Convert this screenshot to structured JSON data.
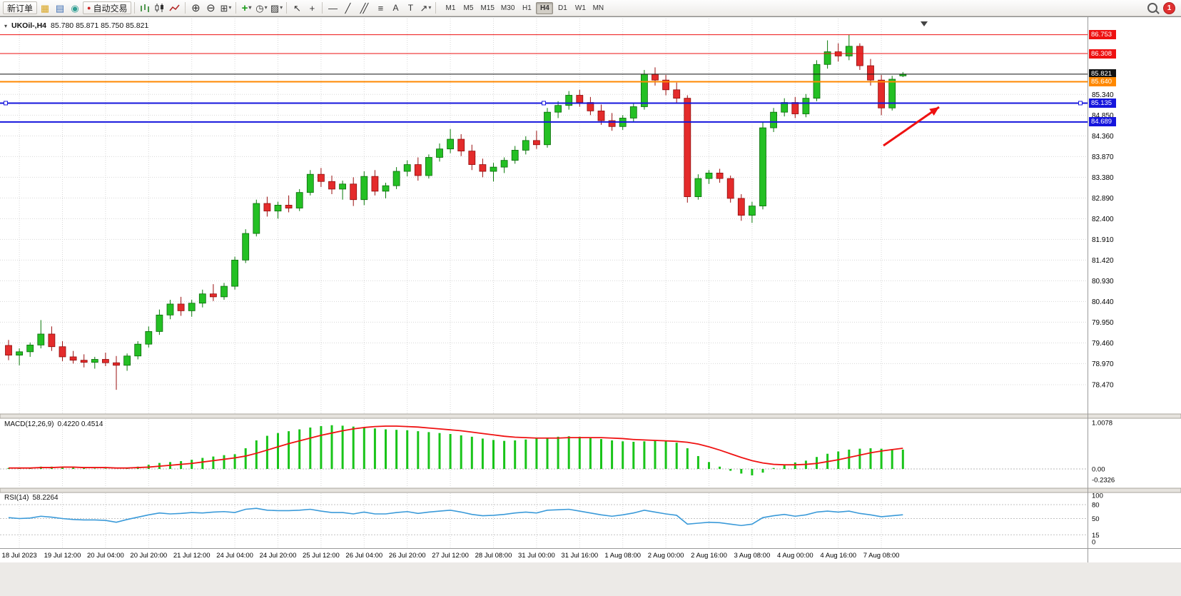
{
  "toolbar": {
    "new_order_label": "新订单",
    "autotrading_label": "自动交易",
    "timeframes": [
      "M1",
      "M5",
      "M15",
      "M30",
      "H1",
      "H4",
      "D1",
      "W1",
      "MN"
    ],
    "active_timeframe": "H4",
    "notification_count": "1"
  },
  "icons": {
    "market_watch": "▦",
    "data_window": "▤",
    "navigator": "◉",
    "autotrading_dot": "●",
    "zoom_in": "⊕",
    "zoom_out": "⊖",
    "tile_windows": "⊞",
    "indicators_add": "+",
    "periods_clock": "◷",
    "template": "▨",
    "cursor": "↖",
    "crosshair": "+",
    "horizontal_line": "—",
    "trendline": "╱",
    "channel": "╱╱",
    "fibonacci": "≡",
    "text_tool": "A",
    "label_tool": "T",
    "shapes": "↗",
    "dropdown": "▾",
    "header_marker": "▾"
  },
  "chart": {
    "symbol_period": "UKOil-,H4",
    "ohlc": "85.780 85.871 85.750 85.821"
  },
  "chart_data": [
    {
      "type": "candlestick",
      "symbol": "UKOil-",
      "timeframe": "H4",
      "open": 85.78,
      "high": 85.871,
      "low": 85.75,
      "close": 85.821,
      "y_ticks": [
        85.34,
        84.85,
        84.36,
        83.87,
        83.38,
        82.89,
        82.4,
        81.91,
        81.42,
        80.93,
        80.44,
        79.95,
        79.46,
        78.97,
        78.47
      ],
      "levels": [
        {
          "price": 86.753,
          "color": "#ee1111",
          "width": 1,
          "role": "resistance-line"
        },
        {
          "price": 86.308,
          "color": "#ee1111",
          "width": 1,
          "role": "resistance-line"
        },
        {
          "price": 85.821,
          "color": "#111111",
          "width": 1,
          "role": "current-price"
        },
        {
          "price": 85.64,
          "color": "#ff8800",
          "width": 2,
          "role": "level-line"
        },
        {
          "price": 85.135,
          "color": "#1515dd",
          "width": 2,
          "role": "support-line",
          "selected": true
        },
        {
          "price": 84.689,
          "color": "#1515dd",
          "width": 2,
          "role": "support-line"
        }
      ],
      "x_labels": [
        "18 Jul 2023",
        "19 Jul 12:00",
        "20 Jul 04:00",
        "20 Jul 20:00",
        "21 Jul 12:00",
        "24 Jul 04:00",
        "24 Jul 20:00",
        "25 Jul 12:00",
        "26 Jul 04:00",
        "26 Jul 20:00",
        "27 Jul 12:00",
        "28 Jul 08:00",
        "31 Jul 00:00",
        "31 Jul 16:00",
        "1 Aug 08:00",
        "2 Aug 00:00",
        "2 Aug 16:00",
        "3 Aug 08:00",
        "4 Aug 00:00",
        "4 Aug 16:00",
        "7 Aug 08:00"
      ],
      "candles": [
        [
          79.4,
          79.53,
          79.05,
          79.17
        ],
        [
          79.17,
          79.33,
          78.93,
          79.25
        ],
        [
          79.25,
          79.47,
          79.13,
          79.41
        ],
        [
          79.41,
          80.0,
          79.33,
          79.67
        ],
        [
          79.67,
          79.85,
          79.27,
          79.37
        ],
        [
          79.37,
          79.5,
          79.03,
          79.13
        ],
        [
          79.13,
          79.27,
          78.97,
          79.05
        ],
        [
          79.05,
          79.19,
          78.88,
          79.0
        ],
        [
          79.0,
          79.13,
          78.85,
          79.07
        ],
        [
          79.07,
          79.23,
          78.91,
          78.99
        ],
        [
          78.99,
          79.15,
          78.35,
          78.93
        ],
        [
          78.93,
          79.21,
          78.8,
          79.15
        ],
        [
          79.15,
          79.5,
          79.07,
          79.43
        ],
        [
          79.43,
          79.85,
          79.35,
          79.73
        ],
        [
          79.73,
          80.25,
          79.65,
          80.12
        ],
        [
          80.12,
          80.48,
          80.02,
          80.38
        ],
        [
          80.38,
          80.55,
          80.1,
          80.22
        ],
        [
          80.22,
          80.48,
          80.08,
          80.4
        ],
        [
          80.4,
          80.72,
          80.3,
          80.62
        ],
        [
          80.62,
          80.85,
          80.45,
          80.55
        ],
        [
          80.55,
          80.88,
          80.48,
          80.8
        ],
        [
          80.8,
          81.5,
          80.72,
          81.42
        ],
        [
          81.42,
          82.15,
          81.35,
          82.05
        ],
        [
          82.05,
          82.85,
          81.98,
          82.76
        ],
        [
          82.76,
          82.92,
          82.45,
          82.58
        ],
        [
          82.58,
          82.8,
          82.4,
          82.72
        ],
        [
          82.72,
          82.95,
          82.55,
          82.65
        ],
        [
          82.65,
          83.1,
          82.58,
          83.02
        ],
        [
          83.02,
          83.55,
          82.95,
          83.45
        ],
        [
          83.45,
          83.6,
          83.15,
          83.28
        ],
        [
          83.28,
          83.42,
          82.98,
          83.1
        ],
        [
          83.1,
          83.3,
          82.85,
          83.22
        ],
        [
          83.22,
          83.38,
          82.7,
          82.85
        ],
        [
          82.85,
          83.52,
          82.72,
          83.4
        ],
        [
          83.4,
          83.55,
          82.95,
          83.05
        ],
        [
          83.05,
          83.25,
          82.88,
          83.18
        ],
        [
          83.18,
          83.62,
          83.1,
          83.52
        ],
        [
          83.52,
          83.78,
          83.4,
          83.68
        ],
        [
          83.68,
          83.85,
          83.3,
          83.42
        ],
        [
          83.42,
          83.92,
          83.35,
          83.85
        ],
        [
          83.85,
          84.18,
          83.75,
          84.05
        ],
        [
          84.05,
          84.52,
          83.95,
          84.28
        ],
        [
          84.28,
          84.4,
          83.88,
          84.0
        ],
        [
          84.0,
          84.15,
          83.55,
          83.68
        ],
        [
          83.68,
          83.82,
          83.38,
          83.52
        ],
        [
          83.52,
          83.72,
          83.28,
          83.62
        ],
        [
          83.62,
          83.85,
          83.48,
          83.78
        ],
        [
          83.78,
          84.12,
          83.7,
          84.02
        ],
        [
          84.02,
          84.35,
          83.92,
          84.25
        ],
        [
          84.25,
          84.48,
          84.05,
          84.15
        ],
        [
          84.15,
          85.02,
          84.08,
          84.92
        ],
        [
          84.92,
          85.18,
          84.78,
          85.08
        ],
        [
          85.08,
          85.42,
          84.98,
          85.32
        ],
        [
          85.32,
          85.45,
          85.05,
          85.15
        ],
        [
          85.15,
          85.28,
          84.85,
          84.95
        ],
        [
          84.95,
          85.1,
          84.62,
          84.72
        ],
        [
          84.72,
          84.9,
          84.48,
          84.58
        ],
        [
          84.58,
          84.85,
          84.5,
          84.78
        ],
        [
          84.78,
          85.15,
          84.7,
          85.05
        ],
        [
          85.05,
          85.92,
          84.98,
          85.82
        ],
        [
          85.82,
          85.98,
          85.55,
          85.68
        ],
        [
          85.68,
          85.8,
          85.32,
          85.45
        ],
        [
          85.45,
          85.62,
          85.12,
          85.25
        ],
        [
          85.25,
          85.32,
          82.78,
          82.92
        ],
        [
          82.92,
          83.45,
          82.85,
          83.35
        ],
        [
          83.35,
          83.55,
          83.22,
          83.48
        ],
        [
          83.48,
          83.58,
          83.25,
          83.35
        ],
        [
          83.35,
          83.42,
          82.78,
          82.88
        ],
        [
          82.88,
          82.98,
          82.35,
          82.48
        ],
        [
          82.48,
          82.8,
          82.3,
          82.7
        ],
        [
          82.7,
          84.68,
          82.62,
          84.55
        ],
        [
          84.55,
          85.02,
          84.45,
          84.92
        ],
        [
          84.92,
          85.25,
          84.82,
          85.15
        ],
        [
          85.15,
          85.28,
          84.78,
          84.88
        ],
        [
          84.88,
          85.35,
          84.8,
          85.25
        ],
        [
          85.25,
          86.15,
          85.18,
          86.05
        ],
        [
          86.05,
          86.62,
          85.95,
          86.35
        ],
        [
          86.35,
          86.55,
          86.12,
          86.25
        ],
        [
          86.25,
          86.75,
          86.15,
          86.48
        ],
        [
          86.48,
          86.55,
          85.92,
          86.02
        ],
        [
          86.02,
          86.18,
          85.55,
          85.68
        ],
        [
          85.68,
          85.8,
          84.85,
          85.02
        ],
        [
          85.02,
          85.78,
          84.96,
          85.7
        ],
        [
          85.78,
          85.871,
          85.75,
          85.821
        ]
      ],
      "annotation": {
        "type": "arrow",
        "color": "#ee1111",
        "from": [
          1238,
          180
        ],
        "to": [
          1316,
          126
        ]
      }
    },
    {
      "type": "macd",
      "name": "MACD(12,26,9)",
      "values_display": "0.4220 0.4514",
      "macd_value": 0.422,
      "signal_value": 0.4514,
      "scale": [
        {
          "label": "1.0078",
          "value": 1.0078
        },
        {
          "label": "0.00",
          "value": 0
        },
        {
          "label": "-0.2326",
          "value": -0.2326
        }
      ],
      "histogram": [
        0.02,
        0.02,
        0.03,
        0.05,
        0.05,
        0.04,
        0.03,
        0.02,
        0.01,
        0.01,
        0.0,
        0.02,
        0.05,
        0.09,
        0.13,
        0.15,
        0.17,
        0.2,
        0.24,
        0.27,
        0.3,
        0.32,
        0.45,
        0.62,
        0.72,
        0.78,
        0.82,
        0.86,
        0.9,
        0.93,
        0.95,
        0.94,
        0.92,
        0.9,
        0.88,
        0.86,
        0.85,
        0.84,
        0.82,
        0.8,
        0.78,
        0.76,
        0.73,
        0.7,
        0.66,
        0.63,
        0.61,
        0.62,
        0.64,
        0.66,
        0.68,
        0.7,
        0.71,
        0.7,
        0.68,
        0.65,
        0.62,
        0.6,
        0.59,
        0.6,
        0.61,
        0.6,
        0.57,
        0.45,
        0.28,
        0.15,
        0.05,
        -0.04,
        -0.1,
        -0.14,
        -0.08,
        0.02,
        0.1,
        0.14,
        0.18,
        0.26,
        0.33,
        0.38,
        0.42,
        0.44,
        0.45,
        0.44,
        0.43,
        0.42
      ],
      "signal": [
        0.02,
        0.02,
        0.02,
        0.03,
        0.03,
        0.04,
        0.04,
        0.03,
        0.03,
        0.03,
        0.02,
        0.02,
        0.03,
        0.04,
        0.06,
        0.08,
        0.1,
        0.12,
        0.15,
        0.18,
        0.21,
        0.24,
        0.28,
        0.34,
        0.41,
        0.48,
        0.55,
        0.61,
        0.67,
        0.73,
        0.78,
        0.83,
        0.87,
        0.9,
        0.92,
        0.93,
        0.93,
        0.92,
        0.91,
        0.89,
        0.87,
        0.85,
        0.83,
        0.8,
        0.77,
        0.74,
        0.71,
        0.69,
        0.68,
        0.67,
        0.67,
        0.67,
        0.68,
        0.68,
        0.68,
        0.68,
        0.67,
        0.66,
        0.64,
        0.63,
        0.62,
        0.61,
        0.6,
        0.58,
        0.54,
        0.48,
        0.41,
        0.33,
        0.25,
        0.18,
        0.13,
        0.1,
        0.09,
        0.09,
        0.1,
        0.12,
        0.16,
        0.2,
        0.25,
        0.3,
        0.35,
        0.39,
        0.42,
        0.45
      ]
    },
    {
      "type": "rsi",
      "name": "RSI(14)",
      "value_display": "58.2264",
      "value": 58.2264,
      "scale": [
        {
          "label": "100",
          "value": 100
        },
        {
          "label": "80",
          "value": 80
        },
        {
          "label": "50",
          "value": 50
        },
        {
          "label": "15",
          "value": 15
        },
        {
          "label": "0",
          "value": 0
        }
      ],
      "level_lines": [
        80,
        50,
        15
      ],
      "values": [
        52,
        50,
        51,
        55,
        53,
        50,
        48,
        47,
        47,
        46,
        42,
        48,
        53,
        58,
        62,
        60,
        61,
        63,
        62,
        64,
        65,
        63,
        70,
        72,
        68,
        67,
        67,
        68,
        70,
        66,
        63,
        63,
        60,
        64,
        60,
        60,
        63,
        65,
        61,
        64,
        66,
        68,
        64,
        59,
        56,
        57,
        59,
        62,
        64,
        62,
        68,
        69,
        70,
        66,
        62,
        58,
        55,
        58,
        62,
        68,
        64,
        60,
        57,
        38,
        40,
        42,
        41,
        38,
        35,
        38,
        52,
        56,
        59,
        55,
        58,
        64,
        66,
        64,
        66,
        61,
        58,
        54,
        56,
        58.2
      ]
    }
  ]
}
